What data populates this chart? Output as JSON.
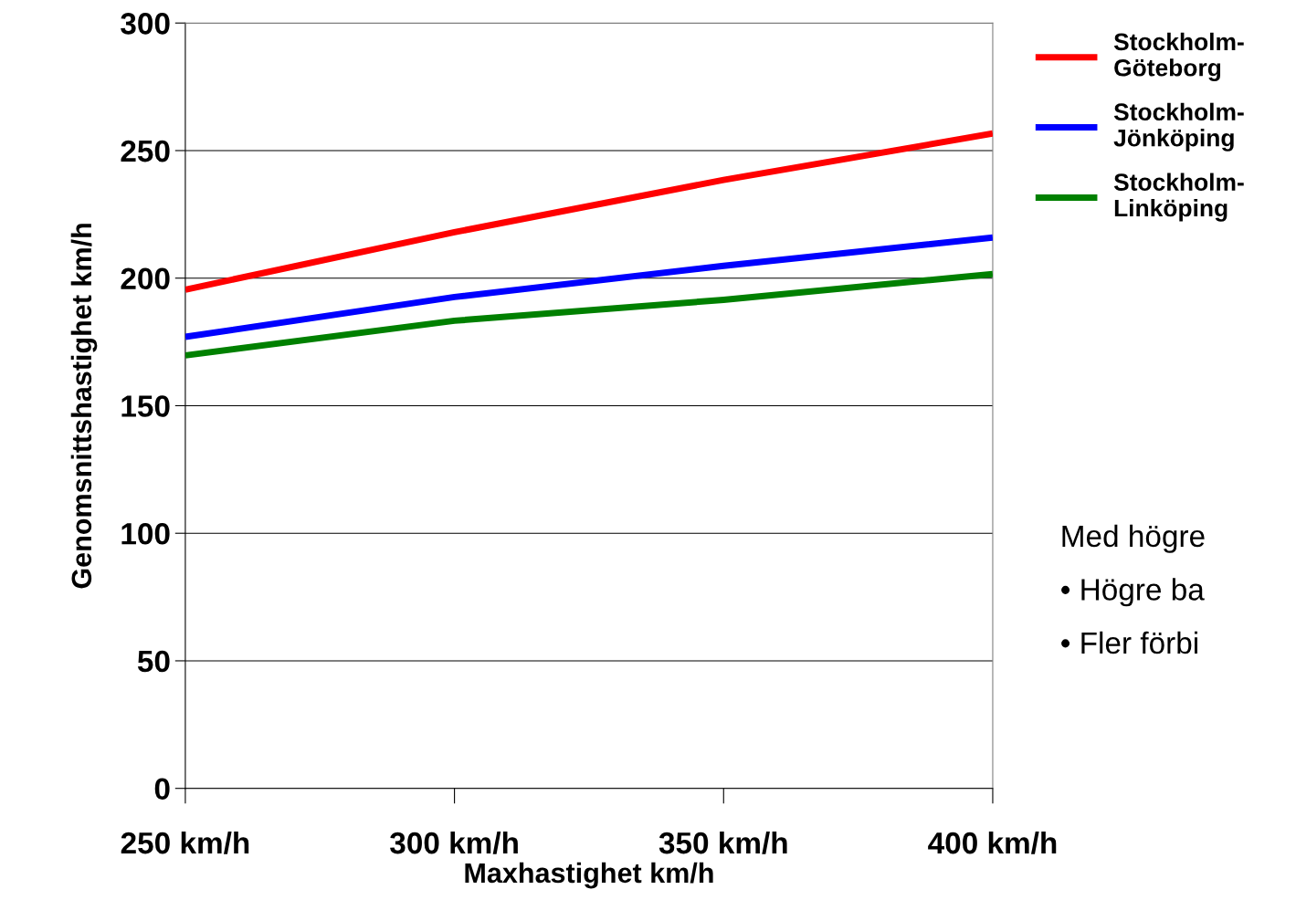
{
  "chart_data": {
    "type": "line",
    "xlabel": "Maxhastighet km/h",
    "ylabel": "Genomsnittshastighet km/h",
    "categories": [
      "250 km/h",
      "300 km/h",
      "350 km/h",
      "400 km/h"
    ],
    "series": [
      {
        "name": "Stockholm-\nGöteborg",
        "color": "#ff0000",
        "values": [
          195.5,
          218,
          238.5,
          256.7
        ]
      },
      {
        "name": "Stockholm-\nJönköping",
        "color": "#0000ff",
        "values": [
          177,
          192.6,
          204.8,
          215.9
        ]
      },
      {
        "name": "Stockholm-\nLinköping",
        "color": "#008000",
        "values": [
          169.7,
          183.3,
          191.5,
          201.6
        ]
      }
    ],
    "ylim": [
      0,
      300
    ],
    "yticks": [
      0,
      50,
      100,
      150,
      200,
      250,
      300
    ],
    "grid": "y",
    "legend": "right",
    "marker": "none",
    "line_style": "solid",
    "annotations": [
      "Med högre",
      "• Högre ba",
      "• Fler förbi"
    ]
  }
}
